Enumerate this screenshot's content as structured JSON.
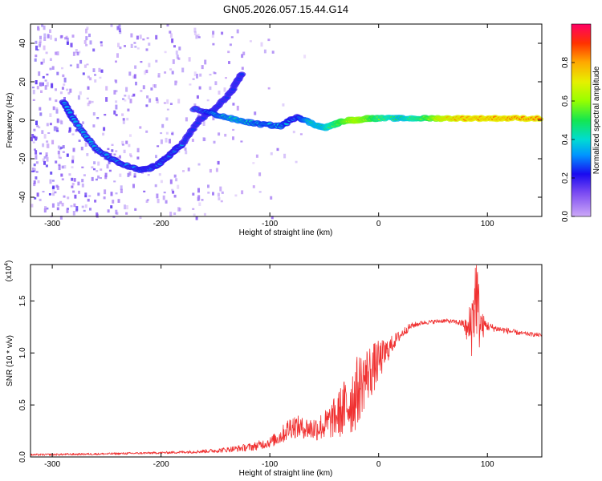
{
  "chart_data": [
    {
      "type": "heatmap",
      "title": "GN05.2026.057.15.44.G14",
      "xlabel": "Height of straight line (km)",
      "ylabel": "Frequency (Hz)",
      "xlim": [
        -320,
        150
      ],
      "ylim": [
        -50,
        50
      ],
      "xticks": [
        -300,
        -200,
        -100,
        0,
        100
      ],
      "xtick_labels": [
        "-300",
        "-200",
        "-100",
        "0",
        "100"
      ],
      "yticks": [
        -40,
        -20,
        0,
        20,
        40
      ],
      "ytick_labels": [
        "-40",
        "-20",
        "0",
        "20",
        "40"
      ],
      "colorbar": {
        "label": "Normalized spectral amplitude",
        "range": [
          0,
          1
        ],
        "ticks": [
          0.0,
          0.2,
          0.4,
          0.6,
          0.8
        ],
        "tick_labels": [
          "0.0",
          "0.2",
          "0.4",
          "0.6",
          "0.8"
        ],
        "colors": [
          "#cda9f7",
          "#3a12d9",
          "#00c8ff",
          "#1ee36a",
          "#b2ff00",
          "#ffc000",
          "#ff3000",
          "#ff0060"
        ]
      },
      "ridges": [
        {
          "name": "descending-arc",
          "x": [
            -290,
            -280,
            -260,
            -240,
            -220,
            -210,
            -200,
            -190,
            -180
          ],
          "y": [
            10,
            0,
            -15,
            -22,
            -26,
            -25,
            -22,
            -17,
            -12
          ],
          "amplitude": 0.35
        },
        {
          "name": "ascending-arc",
          "x": [
            -180,
            -165,
            -150,
            -135,
            -125
          ],
          "y": [
            -12,
            0,
            6,
            15,
            25
          ],
          "amplitude": 0.25
        },
        {
          "name": "main-trace",
          "x": [
            -170,
            -150,
            -130,
            -110,
            -90,
            -75,
            -60,
            -50,
            -40,
            -30,
            -20,
            -10,
            0,
            20,
            40,
            60,
            80,
            100,
            120,
            150
          ],
          "y": [
            6,
            3,
            0,
            -2,
            -3,
            2,
            -2,
            -4,
            -2,
            0,
            0,
            1,
            1,
            1,
            1,
            1,
            1,
            1,
            1,
            1
          ],
          "amplitude": [
            0.3,
            0.4,
            0.45,
            0.4,
            0.4,
            0.35,
            0.5,
            0.5,
            0.6,
            0.7,
            0.75,
            0.7,
            0.6,
            0.5,
            0.6,
            0.8,
            0.85,
            0.85,
            0.85,
            0.85
          ]
        }
      ]
    },
    {
      "type": "line",
      "xlabel": "Height of straight line (km)",
      "ylabel": "SNR (10 * v/v)",
      "scale_label": "(x10",
      "scale_exponent": "4",
      "xlim": [
        -320,
        150
      ],
      "ylim": [
        0,
        1.85
      ],
      "xticks": [
        -300,
        -200,
        -100,
        0,
        100
      ],
      "xtick_labels": [
        "-300",
        "-200",
        "-100",
        "0",
        "100"
      ],
      "yticks": [
        0.0,
        0.5,
        1.0,
        1.5
      ],
      "ytick_labels": [
        "0.0",
        "0.5",
        "1.0",
        "1.5"
      ],
      "color": "#f03030",
      "series": [
        {
          "name": "SNR",
          "x": [
            -320,
            -250,
            -200,
            -170,
            -150,
            -130,
            -115,
            -100,
            -90,
            -80,
            -70,
            -60,
            -50,
            -40,
            -30,
            -25,
            -20,
            -15,
            -10,
            -5,
            0,
            5,
            10,
            15,
            20,
            25,
            30,
            40,
            50,
            60,
            70,
            78,
            82,
            86,
            88,
            90,
            92,
            95,
            98,
            102,
            110,
            120,
            130,
            140,
            150
          ],
          "y": [
            0.02,
            0.03,
            0.04,
            0.05,
            0.06,
            0.08,
            0.1,
            0.14,
            0.2,
            0.3,
            0.28,
            0.27,
            0.3,
            0.38,
            0.48,
            0.55,
            0.62,
            0.72,
            0.8,
            0.85,
            0.92,
            0.98,
            1.05,
            1.12,
            1.17,
            1.22,
            1.26,
            1.29,
            1.3,
            1.31,
            1.3,
            1.28,
            1.2,
            1.3,
            1.5,
            1.6,
            1.35,
            1.25,
            1.27,
            1.25,
            1.23,
            1.21,
            1.19,
            1.18,
            1.17
          ],
          "noise_amplitude": [
            0.01,
            0.01,
            0.01,
            0.015,
            0.02,
            0.03,
            0.04,
            0.05,
            0.08,
            0.12,
            0.1,
            0.12,
            0.14,
            0.2,
            0.3,
            0.35,
            0.35,
            0.3,
            0.28,
            0.25,
            0.2,
            0.15,
            0.1,
            0.07,
            0.05,
            0.04,
            0.03,
            0.02,
            0.02,
            0.02,
            0.02,
            0.04,
            0.15,
            0.35,
            0.45,
            0.45,
            0.35,
            0.15,
            0.06,
            0.04,
            0.03,
            0.03,
            0.02,
            0.02,
            0.02
          ]
        }
      ]
    }
  ]
}
